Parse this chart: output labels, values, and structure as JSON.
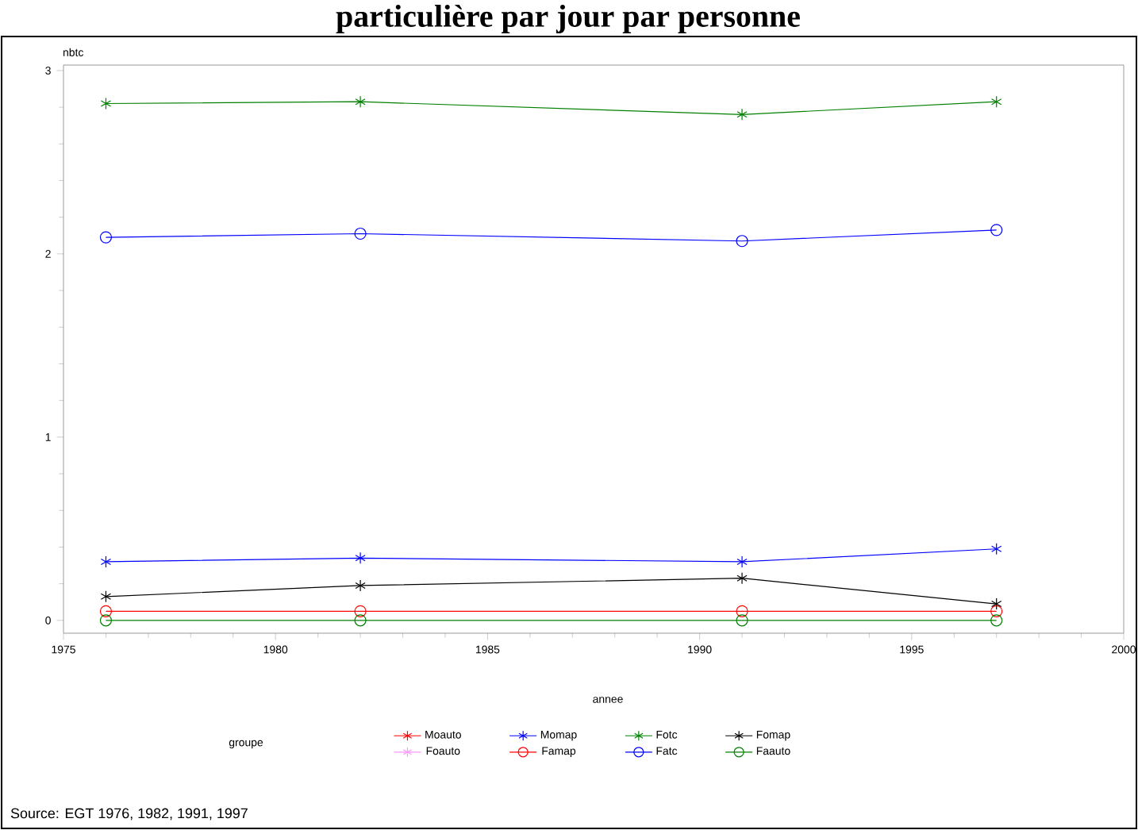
{
  "chart_data": {
    "type": "line",
    "title": "particulière par jour par personne",
    "xlabel": "annee",
    "ylabel": "nbtc",
    "legend_title": "groupe",
    "x": [
      1976,
      1982,
      1991,
      1997
    ],
    "series": [
      {
        "name": "Moauto",
        "color": "#ff0000",
        "marker": "cross",
        "values": [
          null,
          null,
          null,
          null
        ]
      },
      {
        "name": "Foauto",
        "color": "#ff99ff",
        "marker": "cross",
        "values": [
          null,
          null,
          null,
          null
        ]
      },
      {
        "name": "Momap",
        "color": "#0000ff",
        "marker": "cross",
        "values": [
          0.32,
          0.34,
          0.32,
          0.39
        ]
      },
      {
        "name": "Famap",
        "color": "#ff0000",
        "marker": "circle",
        "values": [
          0.05,
          0.05,
          0.05,
          0.05
        ]
      },
      {
        "name": "Fotc",
        "color": "#008000",
        "marker": "cross",
        "values": [
          2.82,
          2.83,
          2.76,
          2.83
        ]
      },
      {
        "name": "Fatc",
        "color": "#0000ff",
        "marker": "circle",
        "values": [
          2.09,
          2.11,
          2.07,
          2.13
        ]
      },
      {
        "name": "Fomap",
        "color": "#000000",
        "marker": "cross",
        "values": [
          0.13,
          0.19,
          0.23,
          0.09
        ]
      },
      {
        "name": "Faauto",
        "color": "#008000",
        "marker": "circle",
        "values": [
          0.0,
          0.0,
          0.0,
          0.0
        ]
      }
    ],
    "xlim": [
      1975,
      2000
    ],
    "xticks": [
      1975,
      1980,
      1985,
      1990,
      1995,
      2000
    ],
    "ylim": [
      -0.07,
      3.03
    ],
    "yticks": [
      0,
      1,
      2,
      3
    ],
    "legend": "bottom",
    "annotations": [
      "Source: EGT 1976, 1982, 1991, 1997"
    ]
  }
}
